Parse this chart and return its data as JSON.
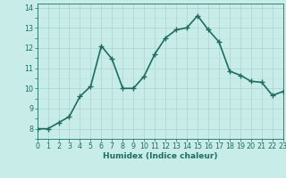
{
  "x": [
    0,
    1,
    2,
    3,
    4,
    5,
    6,
    7,
    8,
    9,
    10,
    11,
    12,
    13,
    14,
    15,
    16,
    17,
    18,
    19,
    20,
    21,
    22,
    23
  ],
  "y": [
    8.0,
    8.0,
    8.3,
    8.6,
    9.6,
    10.1,
    12.1,
    11.45,
    10.0,
    10.0,
    10.6,
    11.7,
    12.5,
    12.9,
    13.0,
    13.6,
    12.9,
    12.3,
    10.85,
    10.65,
    10.35,
    10.3,
    9.65,
    9.85
  ],
  "line_color": "#1e6e60",
  "marker": "+",
  "markersize": 4,
  "linewidth": 1.2,
  "bg_color": "#c8ece8",
  "grid_color": "#aad4cf",
  "grid_color2": "#bde0db",
  "xlabel": "Humidex (Indice chaleur)",
  "xlim": [
    0,
    23
  ],
  "ylim": [
    7.5,
    14.2
  ],
  "xticks": [
    0,
    1,
    2,
    3,
    4,
    5,
    6,
    7,
    8,
    9,
    10,
    11,
    12,
    13,
    14,
    15,
    16,
    17,
    18,
    19,
    20,
    21,
    22,
    23
  ],
  "yticks": [
    8,
    9,
    10,
    11,
    12,
    13,
    14
  ],
  "tick_color": "#1e6e60",
  "label_fontsize": 6.5,
  "tick_fontsize": 5.8
}
